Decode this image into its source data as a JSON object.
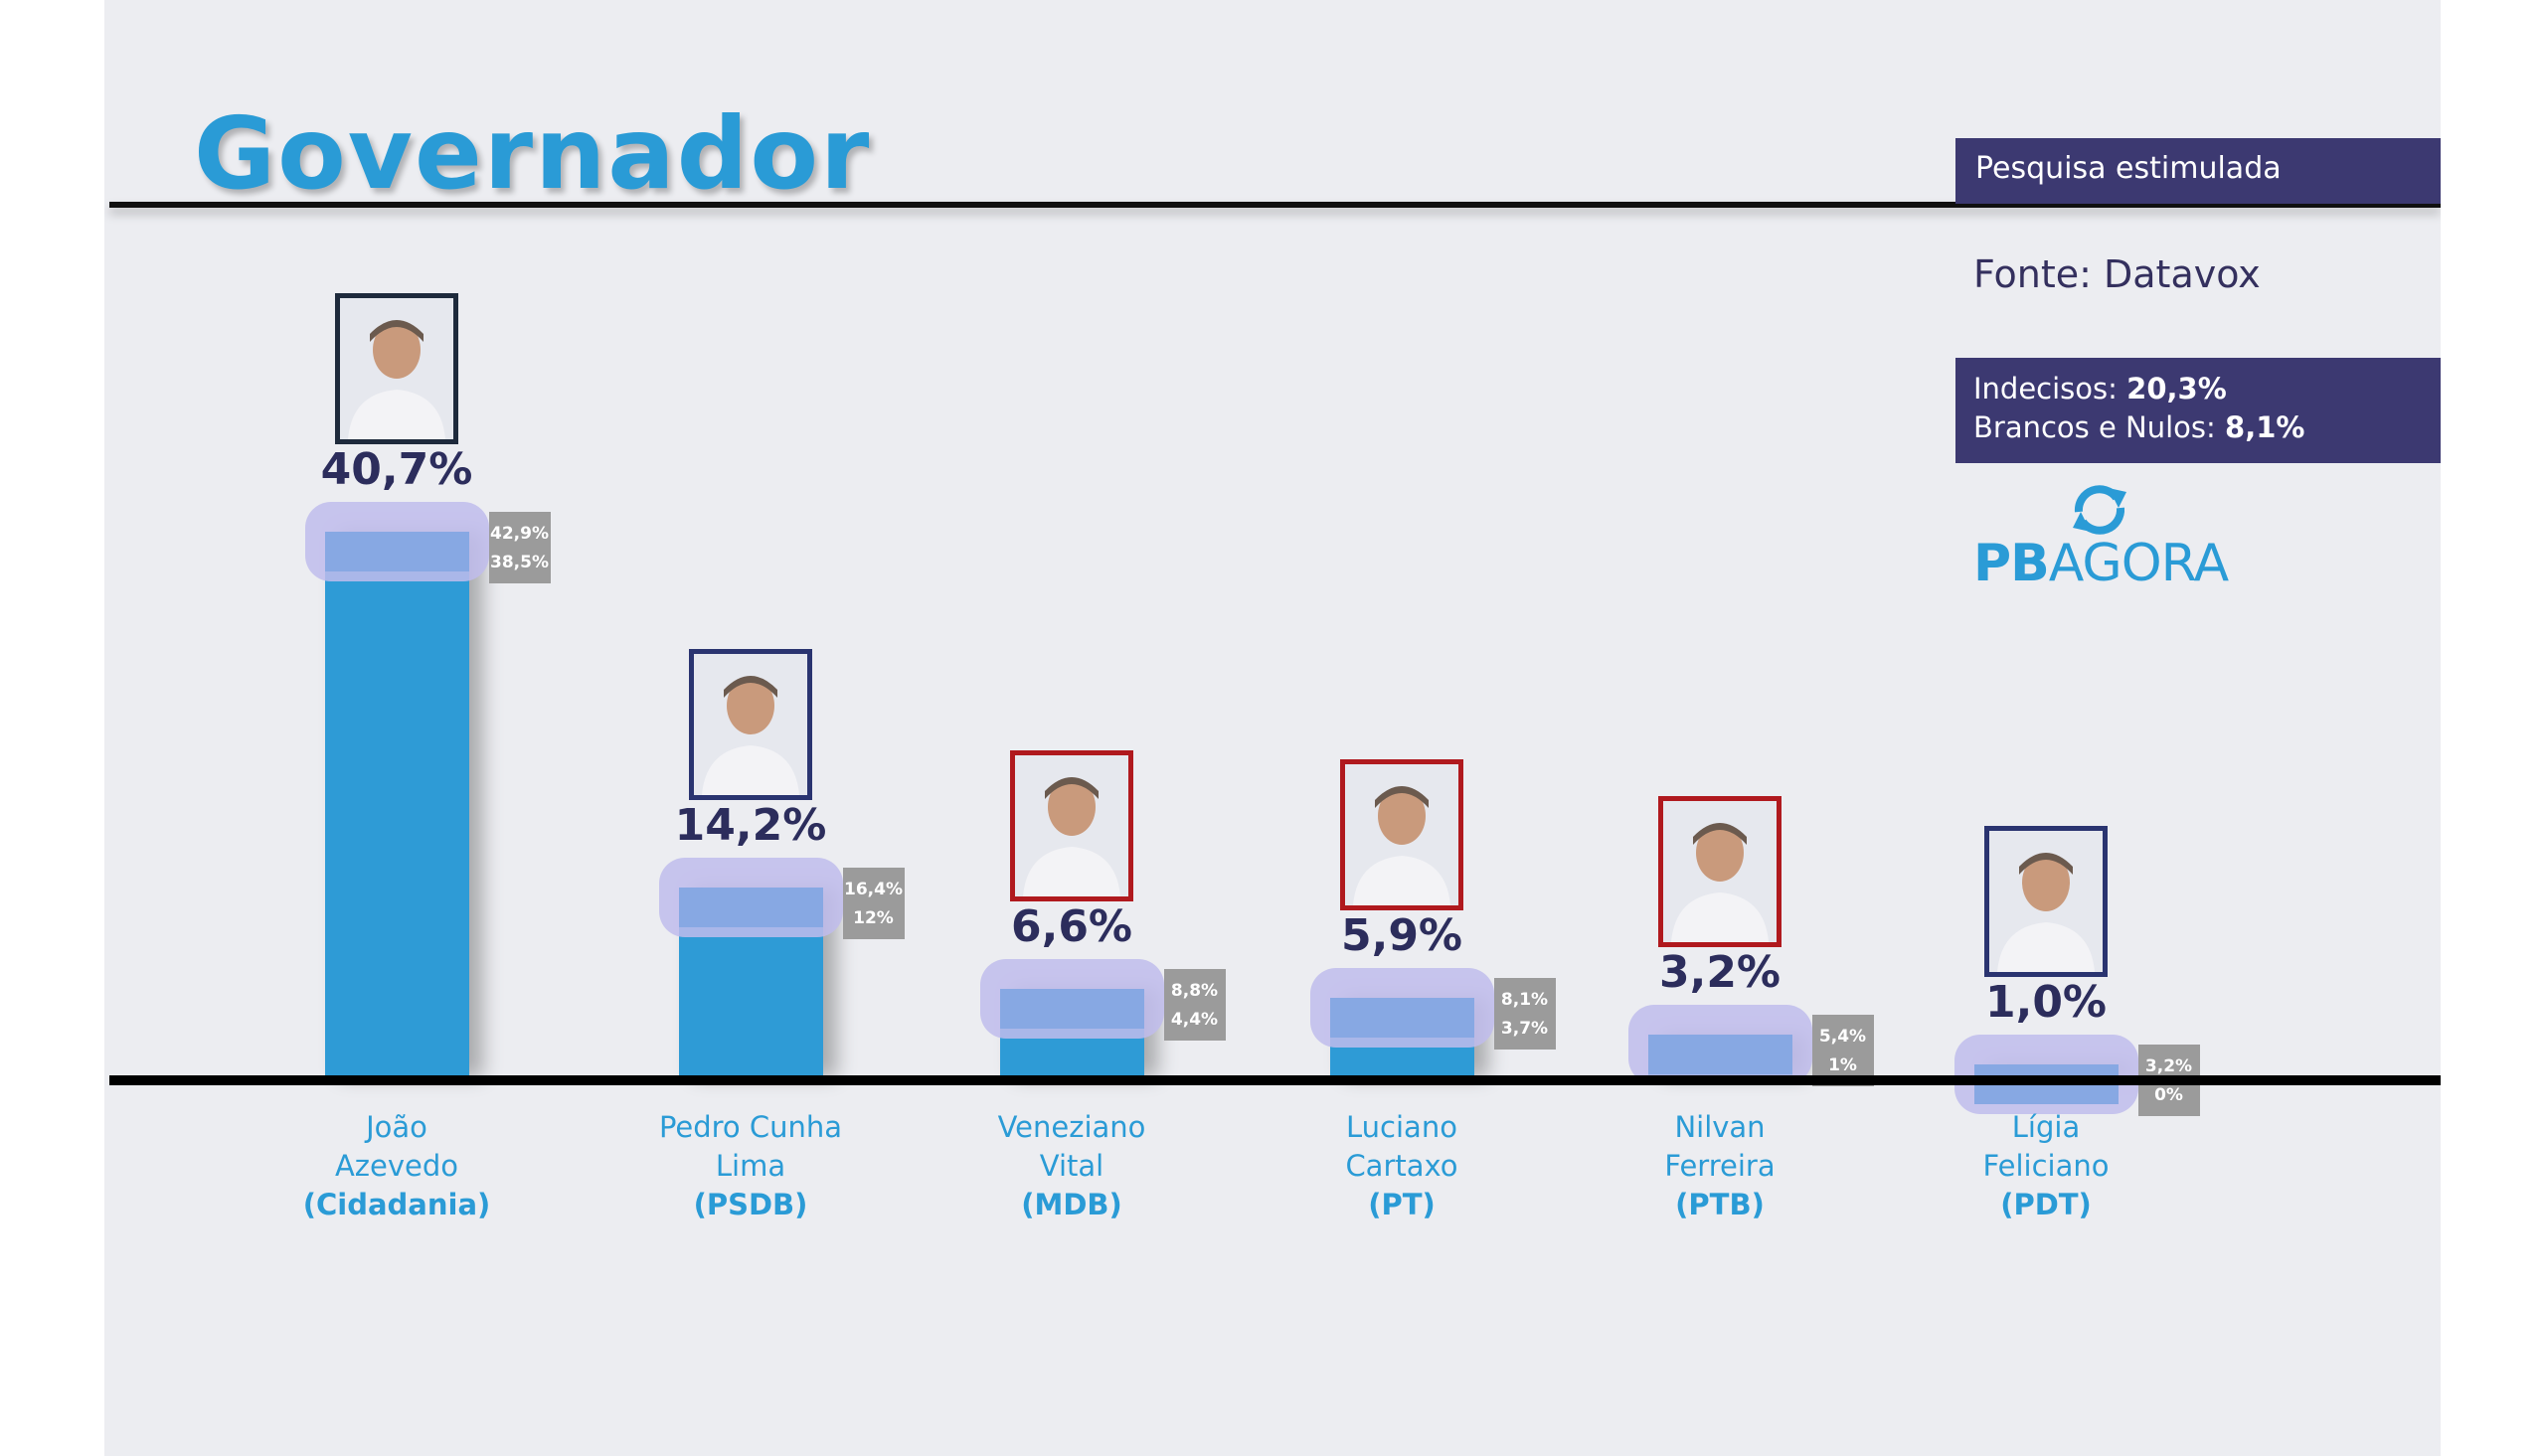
{
  "title": "Governador",
  "survey_label": "Pesquisa estimulada",
  "source": "Fonte: Datavox",
  "undecided_label": "Indecisos:",
  "undecided_value": "20,3%",
  "blank_label": "Brancos e Nulos:",
  "blank_value": "8,1%",
  "logo": {
    "bold": "PB",
    "regular": "AGORA",
    "icon": "refresh-arrows-icon"
  },
  "colors": {
    "bar": "#2e9bd6",
    "title": "#2a9bd6",
    "info_box": "#3c3971",
    "margin_box": "#9b9b9b"
  },
  "chart_data": {
    "type": "bar",
    "categories": [
      "João Azevedo (Cidadania)",
      "Pedro Cunha Lima (PSDB)",
      "Veneziano Vital (MDB)",
      "Luciano Cartaxo (PT)",
      "Nilvan Ferreira (PTB)",
      "Lígia Feliciano (PDT)"
    ],
    "values": [
      40.7,
      14.2,
      6.6,
      5.9,
      3.2,
      1.0
    ],
    "ylim": [
      0,
      45
    ],
    "grid": false,
    "legend": "none",
    "candidates": [
      {
        "line1": "João",
        "line2": "Azevedo",
        "party": "(Cidadania)",
        "value": 40.7,
        "label": "40,7%",
        "upper": 42.9,
        "lower": 38.5,
        "upper_label": "42,9%",
        "lower_label": "38,5%",
        "frame_color": "#1e2a3c",
        "photo_icon": "candidate-photo-icon"
      },
      {
        "line1": "Pedro Cunha",
        "line2": "Lima",
        "party": "(PSDB)",
        "value": 14.2,
        "label": "14,2%",
        "upper": 16.4,
        "lower": 12,
        "upper_label": "16,4%",
        "lower_label": "12%",
        "frame_color": "#2a3470",
        "photo_icon": "candidate-photo-icon"
      },
      {
        "line1": "Veneziano",
        "line2": "Vital",
        "party": "(MDB)",
        "value": 6.6,
        "label": "6,6%",
        "upper": 8.8,
        "lower": 4.4,
        "upper_label": "8,8%",
        "lower_label": "4,4%",
        "frame_color": "#b0191e",
        "photo_icon": "candidate-photo-icon"
      },
      {
        "line1": "Luciano",
        "line2": "Cartaxo",
        "party": "(PT)",
        "value": 5.9,
        "label": "5,9%",
        "upper": 8.1,
        "lower": 3.7,
        "upper_label": "8,1%",
        "lower_label": "3,7%",
        "frame_color": "#b0191e",
        "photo_icon": "candidate-photo-icon"
      },
      {
        "line1": "Nilvan",
        "line2": "Ferreira",
        "party": "(PTB)",
        "value": 3.2,
        "label": "3,2%",
        "upper": 5.4,
        "lower": 1,
        "upper_label": "5,4%",
        "lower_label": "1%",
        "frame_color": "#b0191e",
        "photo_icon": "candidate-photo-icon"
      },
      {
        "line1": "Lígia",
        "line2": "Feliciano",
        "party": "(PDT)",
        "value": 1.0,
        "label": "1,0%",
        "upper": 3.2,
        "lower": 0,
        "upper_label": "3,2%",
        "lower_label": "0%",
        "frame_color": "#2a3470",
        "photo_icon": "candidate-photo-icon"
      }
    ]
  }
}
